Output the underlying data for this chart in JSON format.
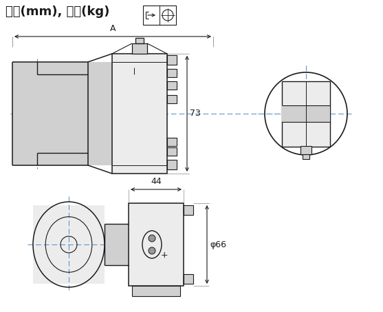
{
  "title": "尺寸(mm), 重量(kg)",
  "bg_color": "#ffffff",
  "line_color": "#1a1a1a",
  "dash_color": "#5588bb",
  "gray_fill": "#d0d0d0",
  "light_gray": "#ececec"
}
